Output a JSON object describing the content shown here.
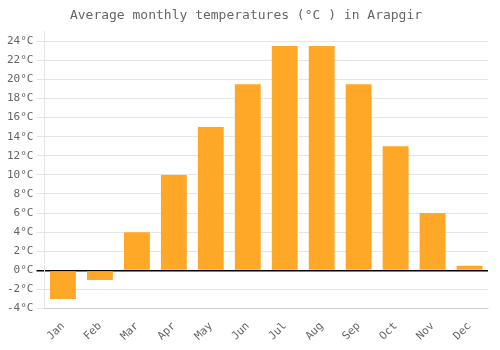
{
  "chart_data": {
    "type": "bar",
    "title": "Average monthly temperatures (°C ) in Arapgir",
    "categories": [
      "Jan",
      "Feb",
      "Mar",
      "Apr",
      "May",
      "Jun",
      "Jul",
      "Aug",
      "Sep",
      "Oct",
      "Nov",
      "Dec"
    ],
    "values": [
      -3,
      -1,
      4,
      10,
      15,
      19.5,
      23.5,
      23.5,
      19.5,
      13,
      6,
      0.5
    ],
    "color": "#FFA726",
    "ylim": [
      -4,
      25
    ],
    "yticks": [
      {
        "value": -4,
        "label": "-4°C"
      },
      {
        "value": -2,
        "label": "-2°C"
      },
      {
        "value": 0,
        "label": "0°C"
      },
      {
        "value": 2,
        "label": "2°C"
      },
      {
        "value": 4,
        "label": "4°C"
      },
      {
        "value": 6,
        "label": "6°C"
      },
      {
        "value": 8,
        "label": "8°C"
      },
      {
        "value": 10,
        "label": "10°C"
      },
      {
        "value": 12,
        "label": "12°C"
      },
      {
        "value": 14,
        "label": "14°C"
      },
      {
        "value": 16,
        "label": "16°C"
      },
      {
        "value": 18,
        "label": "18°C"
      },
      {
        "value": 20,
        "label": "20°C"
      },
      {
        "value": 22,
        "label": "22°C"
      },
      {
        "value": 24,
        "label": "24°C"
      }
    ],
    "grid": true
  }
}
